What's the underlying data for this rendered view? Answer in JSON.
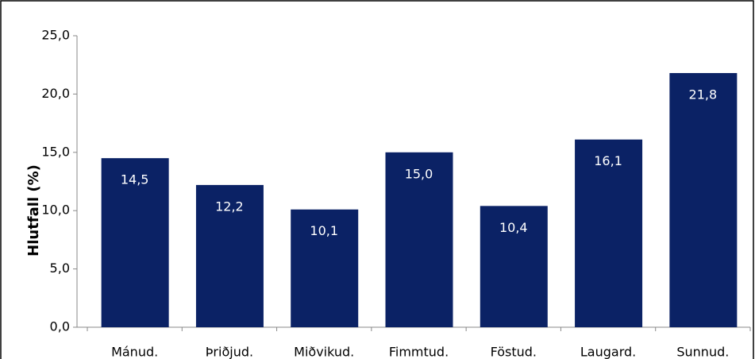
{
  "chart_data": {
    "type": "bar",
    "ylabel": "Hlutfall (%)",
    "categories": [
      "Mánud.",
      "Þriðjud.",
      "Miðvikud.",
      "Fimmtud.",
      "Föstud.",
      "Laugard.",
      "Sunnud."
    ],
    "values": [
      14.5,
      12.2,
      10.1,
      15.0,
      10.4,
      16.1,
      21.8
    ],
    "value_labels": [
      "14,5",
      "12,2",
      "10,1",
      "15,0",
      "10,4",
      "16,1",
      "21,8"
    ],
    "color": "#0b2265",
    "ylim": [
      0,
      25
    ],
    "yticks": [
      {
        "value": 0,
        "label": "0,0"
      },
      {
        "value": 5,
        "label": "5,0"
      },
      {
        "value": 10,
        "label": "10,0"
      },
      {
        "value": 15,
        "label": "15,0"
      },
      {
        "value": 20,
        "label": "20,0"
      },
      {
        "value": 25,
        "label": "25,0"
      }
    ],
    "grid": false
  }
}
